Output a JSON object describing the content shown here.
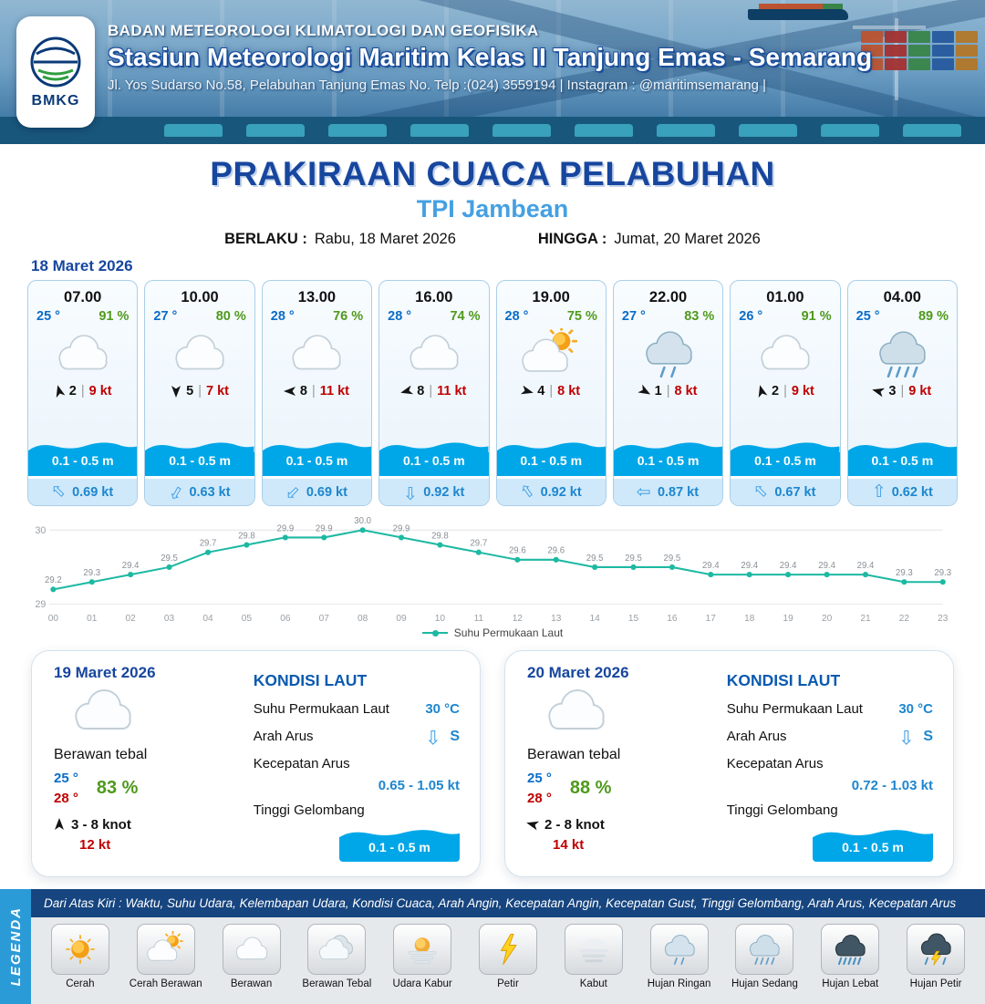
{
  "header": {
    "logo_text": "BMKG",
    "org": "BADAN METEOROLOGI KLIMATOLOGI DAN GEOFISIKA",
    "station": "Stasiun Meteorologi Maritim Kelas II Tanjung Emas - Semarang",
    "address": "Jl. Yos Sudarso No.58, Pelabuhan Tanjung Emas No. Telp :(024) 3559194 | Instagram : @maritimsemarang |"
  },
  "title": {
    "main": "PRAKIRAAN CUACA PELABUHAN",
    "location": "TPI Jambean"
  },
  "validity": {
    "berlaku_label": "BERLAKU :",
    "berlaku_value": "Rabu, 18 Maret 2026",
    "hingga_label": "HINGGA :",
    "hingga_value": "Jumat, 20 Maret 2026"
  },
  "day1": {
    "date": "18 Maret 2026",
    "cards": [
      {
        "time": "07.00",
        "temp": "25 °",
        "rh": "91 %",
        "icon": "cloud",
        "wind_rot": -15,
        "wind_num": "2",
        "wind_speed": "9 kt",
        "wave": "0.1 - 0.5 m",
        "cur_rot": -45,
        "cur": "0.69 kt"
      },
      {
        "time": "10.00",
        "temp": "27 °",
        "rh": "80 %",
        "icon": "cloud",
        "wind_rot": 180,
        "wind_num": "5",
        "wind_speed": "7 kt",
        "wave": "0.1 - 0.5 m",
        "cur_rot": 210,
        "cur": "0.63 kt"
      },
      {
        "time": "13.00",
        "temp": "28 °",
        "rh": "76 %",
        "icon": "cloud",
        "wind_rot": -90,
        "wind_num": "8",
        "wind_speed": "11 kt",
        "wave": "0.1 - 0.5 m",
        "cur_rot": 225,
        "cur": "0.69 kt"
      },
      {
        "time": "16.00",
        "temp": "28 °",
        "rh": "74 %",
        "icon": "cloud",
        "wind_rot": -105,
        "wind_num": "8",
        "wind_speed": "11 kt",
        "wave": "0.1 - 0.5 m",
        "cur_rot": 180,
        "cur": "0.92 kt"
      },
      {
        "time": "19.00",
        "temp": "28 °",
        "rh": "75 %",
        "icon": "sun-cloud",
        "wind_rot": 105,
        "wind_num": "4",
        "wind_speed": "8 kt",
        "wave": "0.1 - 0.5 m",
        "cur_rot": -35,
        "cur": "0.92 kt"
      },
      {
        "time": "22.00",
        "temp": "27 °",
        "rh": "83 %",
        "icon": "rain-light",
        "wind_rot": 120,
        "wind_num": "1",
        "wind_speed": "8 kt",
        "wave": "0.1 - 0.5 m",
        "cur_rot": -90,
        "cur": "0.87 kt"
      },
      {
        "time": "01.00",
        "temp": "26 °",
        "rh": "91 %",
        "icon": "cloud",
        "wind_rot": -15,
        "wind_num": "2",
        "wind_speed": "9 kt",
        "wave": "0.1 - 0.5 m",
        "cur_rot": -45,
        "cur": "0.67 kt"
      },
      {
        "time": "04.00",
        "temp": "25 °",
        "rh": "89 %",
        "icon": "rain-med",
        "wind_rot": -75,
        "wind_num": "3",
        "wind_speed": "9 kt",
        "wave": "0.1 - 0.5 m",
        "cur_rot": 0,
        "cur": "0.62 kt"
      }
    ]
  },
  "chart_data": {
    "type": "line",
    "title": "",
    "xlabel": "",
    "ylabel": "",
    "x": [
      "00",
      "01",
      "02",
      "03",
      "04",
      "05",
      "06",
      "07",
      "08",
      "09",
      "10",
      "11",
      "12",
      "13",
      "14",
      "15",
      "16",
      "17",
      "18",
      "19",
      "20",
      "21",
      "22",
      "23"
    ],
    "series": [
      {
        "name": "Suhu Permukaan Laut",
        "values": [
          29.2,
          29.3,
          29.4,
          29.5,
          29.7,
          29.8,
          29.9,
          29.9,
          30.0,
          29.9,
          29.8,
          29.7,
          29.6,
          29.6,
          29.5,
          29.5,
          29.5,
          29.4,
          29.4,
          29.4,
          29.4,
          29.4,
          29.3,
          29.3
        ]
      }
    ],
    "ylim": [
      29,
      30
    ],
    "yticks": [
      29,
      30
    ],
    "grid": true,
    "legend_position": "bottom",
    "line_color": "#1db9a2"
  },
  "labels": {
    "kondisi_laut": "KONDISI LAUT",
    "sst": "Suhu Permukaan Laut",
    "arah_arus": "Arah Arus",
    "kec_arus": "Kecepatan Arus",
    "tinggi": "Tinggi Gelombang"
  },
  "daily": [
    {
      "date": "19 Maret 2026",
      "icon": "cloud",
      "condition": "Berawan tebal",
      "temp_min": "25 °",
      "temp_max": "28 °",
      "rh": "83 %",
      "wind_rot": 0,
      "wind": "3 - 8 knot",
      "gust": "12 kt",
      "sea": {
        "sst": "30 °C",
        "dir_rot": 180,
        "dir": "S",
        "kecepatan": "0.65 - 1.05 kt",
        "wave": "0.1 - 0.5 m"
      }
    },
    {
      "date": "20 Maret 2026",
      "icon": "cloud",
      "condition": "Berawan tebal",
      "temp_min": "25 °",
      "temp_max": "28 °",
      "rh": "88 %",
      "wind_rot": -75,
      "wind": "2 - 8 knot",
      "gust": "14 kt",
      "sea": {
        "sst": "30 °C",
        "dir_rot": 180,
        "dir": "S",
        "kecepatan": "0.72 - 1.03 kt",
        "wave": "0.1 - 0.5 m"
      }
    }
  ],
  "legend": {
    "vertical_label": "LEGENDA",
    "description": "Dari Atas Kiri : Waktu, Suhu Udara, Kelembapan Udara, Kondisi Cuaca, Arah Angin, Kecepatan Angin, Kecepatan Gust, Tinggi Gelombang, Arah Arus, Kecepatan Arus",
    "items": [
      {
        "label": "Cerah",
        "icon": "sun"
      },
      {
        "label": "Cerah Berawan",
        "icon": "sun-cloud"
      },
      {
        "label": "Berawan",
        "icon": "cloud"
      },
      {
        "label": "Berawan Tebal",
        "icon": "cloud-thick"
      },
      {
        "label": "Udara Kabur",
        "icon": "haze"
      },
      {
        "label": "Petir",
        "icon": "lightning"
      },
      {
        "label": "Kabut",
        "icon": "fog"
      },
      {
        "label": "Hujan Ringan",
        "icon": "rain-light"
      },
      {
        "label": "Hujan Sedang",
        "icon": "rain-med"
      },
      {
        "label": "Hujan Lebat",
        "icon": "rain-heavy"
      },
      {
        "label": "Hujan Petir",
        "icon": "storm"
      }
    ]
  },
  "colors": {
    "accent_blue": "#17469e",
    "light_blue": "#45a0e2",
    "temp_blue": "#0a6cc8",
    "rh_green": "#4f9a1c",
    "speed_red": "#c00000",
    "wave_blue": "#00a7e8",
    "line_teal": "#1db9a2"
  }
}
